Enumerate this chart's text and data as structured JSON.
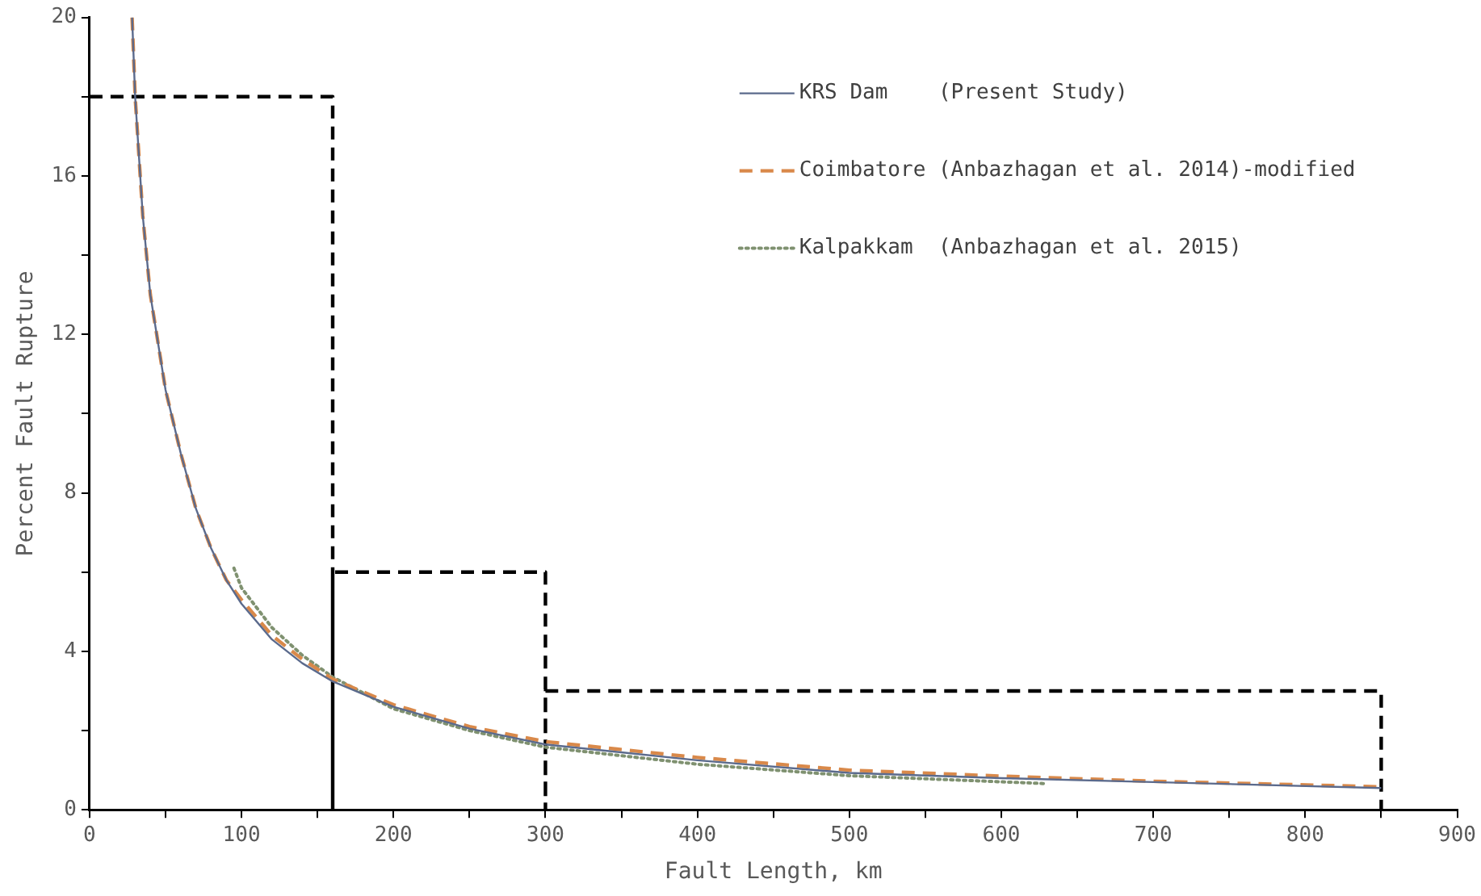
{
  "chart_data": {
    "type": "line",
    "xlabel": "Fault Length, km",
    "ylabel": "Percent Fault Rupture",
    "xlim": [
      0,
      900
    ],
    "ylim": [
      0,
      20
    ],
    "xticks": [
      0,
      {
        "value": 50,
        "label": null
      },
      100,
      {
        "value": 150,
        "label": null
      },
      200,
      {
        "value": 250,
        "label": null
      },
      300,
      {
        "value": 350,
        "label": null
      },
      400,
      {
        "value": 450,
        "label": null
      },
      500,
      {
        "value": 550,
        "label": null
      },
      600,
      {
        "value": 650,
        "label": null
      },
      700,
      {
        "value": 750,
        "label": null
      },
      800,
      {
        "value": 850,
        "label": null
      },
      900
    ],
    "yticks": [
      0,
      {
        "value": 2,
        "label": null
      },
      4,
      {
        "value": 6,
        "label": null
      },
      8,
      {
        "value": 10,
        "label": null
      },
      12,
      {
        "value": 14,
        "label": null
      },
      16,
      {
        "value": 18,
        "label": null
      },
      20
    ],
    "grid": false,
    "legend": "top right",
    "marker": "none",
    "series": [
      {
        "name": "KRS Dam    (Present Study)",
        "color": "#5b6a8c",
        "line_style": "solid",
        "x": [
          28,
          30,
          35,
          40,
          50,
          60,
          70,
          80,
          90,
          100,
          120,
          140,
          160,
          200,
          250,
          300,
          400,
          500,
          600,
          700,
          850
        ],
        "values": [
          20,
          18,
          15,
          13,
          10.6,
          9,
          7.6,
          6.6,
          5.8,
          5.2,
          4.3,
          3.7,
          3.24,
          2.6,
          2.05,
          1.65,
          1.25,
          0.93,
          0.8,
          0.7,
          0.55
        ]
      },
      {
        "name": "Coimbatore (Anbazhagan et al. 2014)-modified",
        "color": "#d9894a",
        "line_style": "dashed",
        "x": [
          28,
          30,
          35,
          40,
          50,
          60,
          70,
          80,
          90,
          100,
          120,
          140,
          160,
          200,
          250,
          300,
          400,
          500,
          600,
          700,
          850
        ],
        "values": [
          20,
          18,
          15,
          13,
          10.6,
          9,
          7.6,
          6.6,
          5.8,
          5.3,
          4.4,
          3.8,
          3.3,
          2.65,
          2.1,
          1.72,
          1.32,
          1.0,
          0.85,
          0.72,
          0.58
        ]
      },
      {
        "name": "Kalpakkam  (Anbazhagan et al. 2015)",
        "color": "#7f9170",
        "line_style": "dotted",
        "x": [
          95,
          100,
          120,
          140,
          160,
          200,
          250,
          300,
          400,
          500,
          630
        ],
        "values": [
          6.1,
          5.6,
          4.6,
          3.9,
          3.35,
          2.55,
          2.0,
          1.58,
          1.15,
          0.86,
          0.66
        ]
      },
      {
        "color": "#000000",
        "line_style": "dashed",
        "x": [
          0,
          160,
          160,
          160,
          300,
          300,
          300,
          850,
          850
        ],
        "values": [
          18,
          18,
          0,
          6,
          6,
          0,
          3,
          3,
          0
        ]
      }
    ]
  }
}
